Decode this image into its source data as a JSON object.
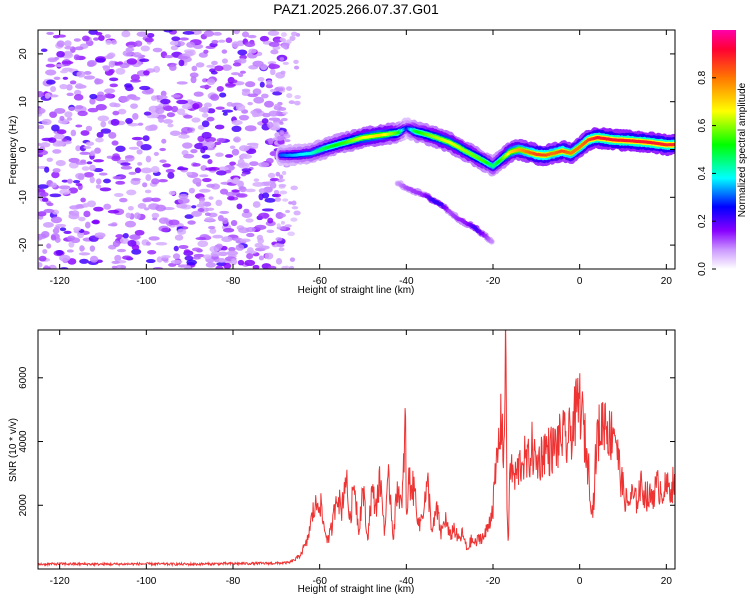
{
  "title": "PAZ1.2025.266.07.37.G01",
  "chart_data": [
    {
      "type": "heatmap",
      "title": "PAZ1.2025.266.07.37.G01",
      "xlabel": "Height of straight line (km)",
      "ylabel": "Frequency (Hz)",
      "xlim": [
        -125,
        22
      ],
      "ylim": [
        -25,
        25
      ],
      "xticks": [
        -120,
        -100,
        -80,
        -60,
        -40,
        -20,
        0,
        20
      ],
      "yticks": [
        -20,
        -10,
        0,
        10,
        20
      ],
      "colorbar": {
        "label": "Normalized spectral amplitude",
        "range": [
          0,
          1
        ],
        "ticks": [
          "0.0",
          "0.2",
          "0.4",
          "0.6",
          "0.8"
        ],
        "colormap": [
          "#ff00ff",
          "#ff0033",
          "#ff7700",
          "#ffff00",
          "#00ff00",
          "#00ffff",
          "#0000ff",
          "#8800ff",
          "#ffffff"
        ]
      },
      "noise_region": {
        "x_range": [
          -125,
          -68
        ],
        "y_range": [
          -25,
          25
        ],
        "amplitude": 0.1
      },
      "main_ridge": {
        "x": [
          -69,
          -66,
          -62,
          -58,
          -54,
          -50,
          -46,
          -42,
          -40,
          -38,
          -34,
          -30,
          -26,
          -22,
          -20,
          -18,
          -16,
          -14,
          -12,
          -10,
          -8,
          -6,
          -4,
          -2,
          0,
          2,
          4,
          8,
          12,
          16,
          20,
          22
        ],
        "freq": [
          -1.2,
          -1.2,
          -0.8,
          0.5,
          1.5,
          2.5,
          3.0,
          3.5,
          4.5,
          3.8,
          2.8,
          1.5,
          -0.5,
          -2.5,
          -3.5,
          -2.0,
          -0.5,
          0.0,
          -0.5,
          -1.0,
          -1.2,
          -0.8,
          -0.3,
          -0.8,
          0.5,
          2.0,
          2.5,
          2.0,
          1.8,
          1.5,
          1.0,
          1.0
        ],
        "amp": [
          0.3,
          0.35,
          0.4,
          0.5,
          0.55,
          0.65,
          0.7,
          0.55,
          0.25,
          0.5,
          0.6,
          0.65,
          0.6,
          0.55,
          0.45,
          0.55,
          0.7,
          0.75,
          0.8,
          0.85,
          0.85,
          0.8,
          0.85,
          0.8,
          0.8,
          0.85,
          0.9,
          0.9,
          0.9,
          0.9,
          0.88,
          0.88
        ]
      },
      "secondary_ridge": {
        "x": [
          -42,
          -40,
          -36,
          -34,
          -32,
          -30,
          -28,
          -26,
          -24,
          -22,
          -20
        ],
        "freq": [
          -7.0,
          -8.0,
          -9.5,
          -10.5,
          -11.5,
          -13.0,
          -14.5,
          -15.5,
          -16.5,
          -18.0,
          -19.5
        ],
        "amp": [
          0.08,
          0.12,
          0.14,
          0.22,
          0.22,
          0.12,
          0.14,
          0.15,
          0.22,
          0.15,
          0.08
        ]
      }
    },
    {
      "type": "line",
      "xlabel": "Height of straight line (km)",
      "ylabel": "SNR (10 * v/v)",
      "xlim": [
        -125,
        22
      ],
      "ylim": [
        0,
        7500
      ],
      "xticks": [
        -120,
        -100,
        -80,
        -60,
        -40,
        -20,
        0,
        20
      ],
      "yticks": [
        2000,
        4000,
        6000
      ],
      "color": "#ee3333",
      "series": [
        {
          "x": [
            -125,
            -120,
            -110,
            -100,
            -90,
            -80,
            -70,
            -67,
            -65,
            -63,
            -61.5,
            -60,
            -59,
            -58,
            -57,
            -56,
            -55,
            -54,
            -53,
            -52,
            -51,
            -50,
            -49,
            -48,
            -47,
            -46,
            -45,
            -44,
            -43,
            -42,
            -41,
            -40.2,
            -40,
            -39.5,
            -38,
            -37,
            -36,
            -35,
            -34,
            -33,
            -32,
            -31,
            -30,
            -29,
            -28,
            -27,
            -26,
            -25,
            -24,
            -23,
            -22,
            -21,
            -20,
            -19,
            -18,
            -17.5,
            -17,
            -16.8,
            -16.5,
            -16,
            -15,
            -14,
            -13,
            -12,
            -11,
            -10,
            -9,
            -8,
            -7,
            -6,
            -5,
            -4,
            -3,
            -2,
            -1,
            0,
            1,
            2,
            3,
            4,
            5,
            6,
            7,
            8,
            9,
            10,
            11,
            12,
            13,
            14,
            15,
            16,
            17,
            18,
            19,
            20,
            21,
            22
          ],
          "y": [
            150,
            160,
            150,
            160,
            150,
            170,
            180,
            200,
            350,
            800,
            1800,
            2200,
            1300,
            900,
            1400,
            2500,
            1800,
            3000,
            1500,
            2800,
            1200,
            2600,
            900,
            2400,
            2000,
            2800,
            1200,
            2900,
            1000,
            2700,
            1800,
            4900,
            1200,
            2800,
            2400,
            1300,
            2000,
            2600,
            1100,
            1900,
            1100,
            1600,
            1000,
            1300,
            900,
            1100,
            600,
            900,
            800,
            1000,
            1000,
            1400,
            2000,
            3500,
            4800,
            3500,
            7400,
            2200,
            800,
            3300,
            2800,
            3200,
            3500,
            3300,
            3800,
            3300,
            3500,
            3800,
            3700,
            3800,
            3900,
            4200,
            3900,
            4300,
            4800,
            5300,
            4300,
            3200,
            1700,
            4100,
            4500,
            4800,
            4100,
            4600,
            3300,
            2500,
            2000,
            2300,
            2100,
            2600,
            2400,
            2200,
            2400,
            2600,
            2500,
            2500,
            2600,
            2700
          ]
        }
      ]
    }
  ]
}
